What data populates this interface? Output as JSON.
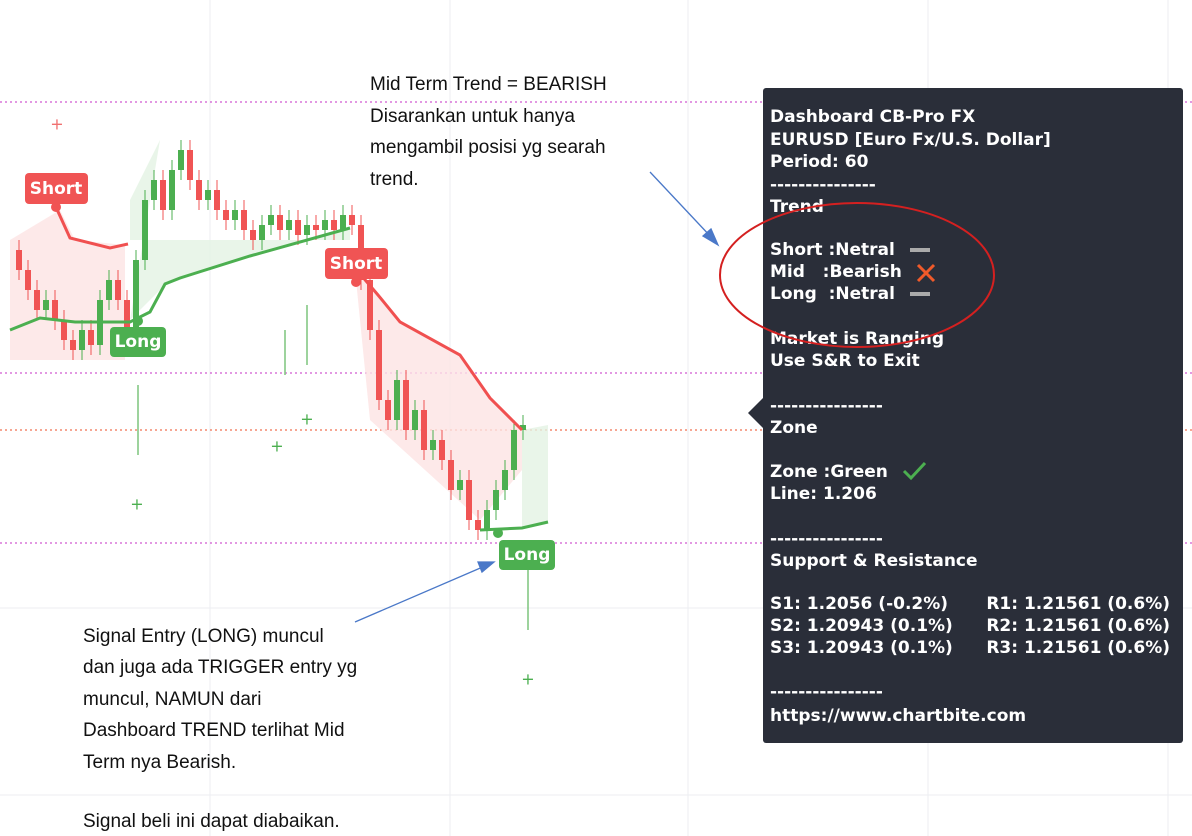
{
  "annotations": {
    "mid_term": [
      "Mid Term Trend = BEARISH",
      "Disarankan untuk hanya",
      "mengambil posisi yg searah",
      "trend."
    ],
    "signal": [
      "Signal Entry (LONG) muncul",
      "dan juga ada TRIGGER entry yg",
      "muncul, NAMUN dari",
      "Dashboard TREND terlihat Mid",
      "Term nya Bearish.",
      "Signal beli ini dapat diabaikan."
    ]
  },
  "chart_labels": [
    "Short",
    "Long",
    "Short",
    "Long"
  ],
  "dashboard": {
    "header": [
      "Dashboard CB-Pro FX",
      "EURUSD [Euro Fx/U.S. Dollar]",
      "Period: 60",
      "---------------"
    ],
    "trend_title": "Trend",
    "trend": [
      "Short :Netral",
      "Mid   :Bearish",
      "Long  :Netral"
    ],
    "market": [
      "Market is Ranging",
      "Use S&R to Exit"
    ],
    "sep1": "----------------",
    "zone_title": "Zone",
    "zone": [
      "Zone :Green",
      "Line: 1.206"
    ],
    "sep2": "----------------",
    "sr_title": "Support & Resistance",
    "support": [
      "S1: 1.2056 (-0.2%)",
      "S2: 1.20943 (0.1%)",
      "S3: 1.20943 (0.1%)"
    ],
    "resistance": [
      "R1: 1.21561 (0.6%)",
      "R2: 1.21561 (0.6%)",
      "R3: 1.21561 (0.6%)"
    ],
    "sep3": "----------------",
    "url": "https://www.chartbite.com"
  }
}
